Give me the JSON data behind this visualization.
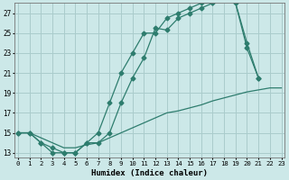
{
  "xlabel": "Humidex (Indice chaleur)",
  "bg_color": "#cce8e8",
  "line_color": "#2e7d6e",
  "grid_color": "#aacccc",
  "yticks": [
    13,
    15,
    17,
    19,
    21,
    23,
    25,
    27
  ],
  "xticks": [
    0,
    1,
    2,
    3,
    4,
    5,
    6,
    7,
    8,
    9,
    10,
    11,
    12,
    13,
    14,
    15,
    16,
    17,
    18,
    19,
    20,
    21,
    22,
    23
  ],
  "line1_x": [
    0,
    1,
    2,
    3,
    4,
    5,
    6,
    7,
    8,
    9,
    10,
    11,
    12,
    13,
    14,
    15,
    16,
    17,
    18,
    19,
    20,
    21
  ],
  "line1_y": [
    15,
    15,
    14,
    13,
    13,
    13,
    14,
    15,
    18,
    21,
    23,
    25,
    25,
    26.5,
    27,
    27.5,
    28,
    28,
    28.5,
    28,
    23.5,
    20.5
  ],
  "line2_x": [
    0,
    1,
    2,
    3,
    4,
    5,
    6,
    7,
    8,
    9,
    10,
    11,
    12,
    13,
    14,
    15,
    16,
    17,
    18,
    19,
    20,
    21
  ],
  "line2_y": [
    15,
    15,
    14,
    13.5,
    13,
    13,
    14,
    14,
    15,
    18,
    20.5,
    22.5,
    25.5,
    25.3,
    26.5,
    27,
    27.5,
    28.0,
    28.5,
    28,
    24,
    20.5
  ],
  "line3_x": [
    0,
    1,
    2,
    3,
    4,
    5,
    6,
    7,
    8,
    9,
    10,
    11,
    12,
    13,
    14,
    15,
    16,
    17,
    18,
    19,
    20,
    21,
    22,
    23
  ],
  "line3_y": [
    15.0,
    15.0,
    14.5,
    14.0,
    13.5,
    13.5,
    13.8,
    14.0,
    14.5,
    15.0,
    15.5,
    16.0,
    16.5,
    17.0,
    17.2,
    17.5,
    17.8,
    18.2,
    18.5,
    18.8,
    19.1,
    19.3,
    19.5,
    19.5
  ]
}
